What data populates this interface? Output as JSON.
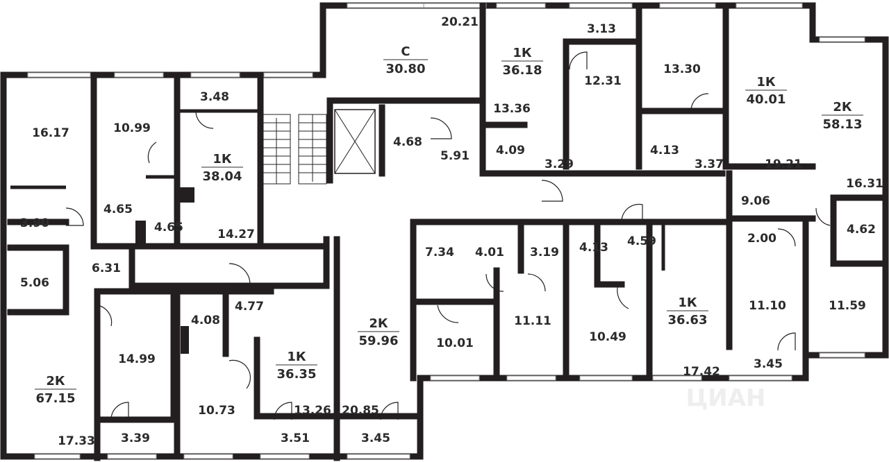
{
  "plan": {
    "apartments": [
      {
        "type": "С",
        "area": "30.80"
      },
      {
        "type": "1К",
        "area": "36.18"
      },
      {
        "type": "1К",
        "area": "40.01"
      },
      {
        "type": "2К",
        "area": "58.13"
      },
      {
        "type": "1К",
        "area": "38.04"
      },
      {
        "type": "2К",
        "area": "67.15"
      },
      {
        "type": "1К",
        "area": "36.35"
      },
      {
        "type": "2К",
        "area": "59.96"
      },
      {
        "type": "1К",
        "area": "36.63"
      }
    ],
    "rooms": [
      "20.21",
      "4.68",
      "5.91",
      "13.36",
      "4.09",
      "3.29",
      "3.13",
      "12.31",
      "13.30",
      "4.13",
      "3.37",
      "19.21",
      "16.31",
      "9.06",
      "4.62",
      "2.00",
      "11.10",
      "11.59",
      "3.45",
      "16.17",
      "3.90",
      "10.99",
      "3.48",
      "4.65",
      "4.65",
      "14.27",
      "5.06",
      "6.31",
      "14.99",
      "17.33",
      "3.39",
      "4.08",
      "4.77",
      "10.73",
      "13.26",
      "3.51",
      "20.85",
      "3.45",
      "7.34",
      "4.01",
      "3.19",
      "10.01",
      "11.11",
      "4.13",
      "4.59",
      "10.49",
      "17.42"
    ],
    "watermark": "ЦИАН",
    "colors": {
      "wall": "#231f20",
      "text": "#2b2b2b",
      "background": "#ffffff"
    }
  }
}
